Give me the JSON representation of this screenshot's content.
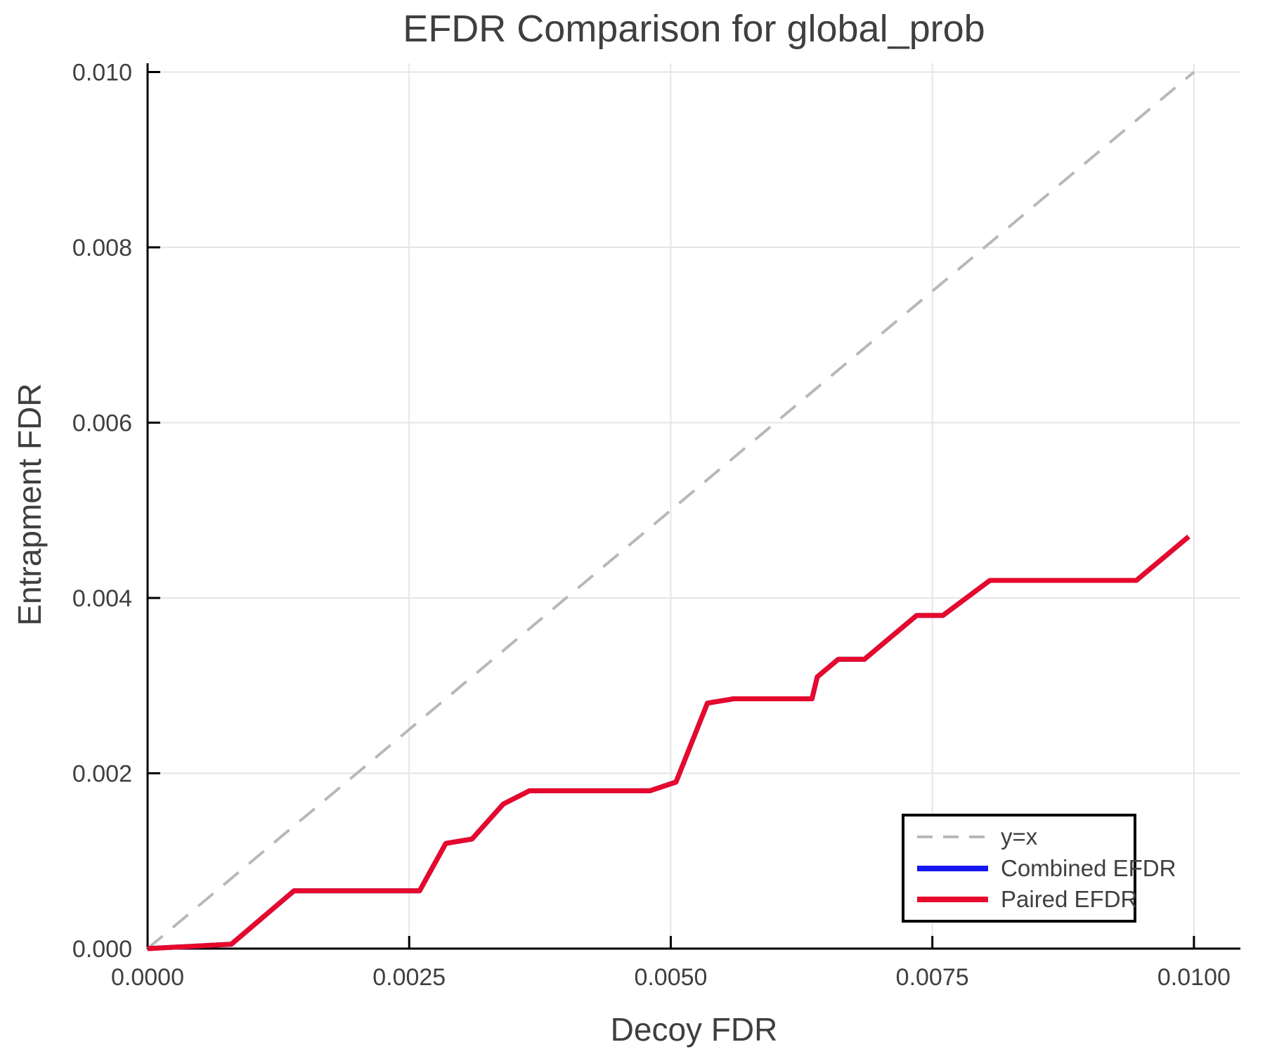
{
  "figure_title": "EFDR Comparison for global_prob",
  "colors": {
    "text": "#3f3f3f",
    "spine": "#000000",
    "grid": "#e6e6e6",
    "identity": "#b8b8b8",
    "combined": "#1616f0",
    "paired": "#e6092c",
    "legend_border": "#000000",
    "legend_bg": "#ffffff"
  },
  "chart_data": {
    "type": "line",
    "title": "EFDR Comparison for global_prob",
    "xlabel": "Decoy FDR",
    "ylabel": "Entrapment FDR",
    "xlim": [
      0,
      0.010444
    ],
    "ylim": [
      0,
      0.0101
    ],
    "grid": true,
    "legend_position": "lower right",
    "x_ticks": {
      "values": [
        0.0,
        0.0025,
        0.005,
        0.0075,
        0.01
      ],
      "labels": [
        "0.0000",
        "0.0025",
        "0.0050",
        "0.0075",
        "0.0100"
      ]
    },
    "y_ticks": {
      "values": [
        0.0,
        0.002,
        0.004,
        0.006,
        0.008,
        0.01
      ],
      "labels": [
        "0.000",
        "0.002",
        "0.004",
        "0.006",
        "0.008",
        "0.010"
      ]
    },
    "series": [
      {
        "key": "identity-line",
        "name": "y=x",
        "color": "#b8b8b8",
        "dashed": true,
        "x": [
          0,
          0.01
        ],
        "y": [
          0,
          0.01
        ]
      },
      {
        "key": "combined-efdr-line",
        "name": "Combined EFDR",
        "color": "#1616f0",
        "dashed": false,
        "x": [
          0.0,
          0.0008,
          0.0014,
          0.0026,
          0.00285,
          0.0031,
          0.0034,
          0.00365,
          0.0048,
          0.00505,
          0.00535,
          0.0056,
          0.00635,
          0.0064,
          0.0066,
          0.00685,
          0.00735,
          0.0076,
          0.00805,
          0.00945,
          0.00995
        ],
        "y": [
          0.0,
          5e-05,
          0.00066,
          0.00066,
          0.0012,
          0.00125,
          0.00165,
          0.0018,
          0.0018,
          0.0019,
          0.0028,
          0.00285,
          0.00285,
          0.0031,
          0.0033,
          0.0033,
          0.0038,
          0.0038,
          0.0042,
          0.0042,
          0.0047
        ]
      },
      {
        "key": "paired-efdr-line",
        "name": "Paired EFDR",
        "color": "#e6092c",
        "dashed": false,
        "x": [
          0.0,
          0.0008,
          0.0014,
          0.0026,
          0.00285,
          0.0031,
          0.0034,
          0.00365,
          0.0048,
          0.00505,
          0.00535,
          0.0056,
          0.00635,
          0.0064,
          0.0066,
          0.00685,
          0.00735,
          0.0076,
          0.00805,
          0.00945,
          0.00995
        ],
        "y": [
          0.0,
          5e-05,
          0.00066,
          0.00066,
          0.0012,
          0.00125,
          0.00165,
          0.0018,
          0.0018,
          0.0019,
          0.0028,
          0.00285,
          0.00285,
          0.0031,
          0.0033,
          0.0033,
          0.0038,
          0.0038,
          0.0042,
          0.0042,
          0.0047
        ]
      }
    ]
  },
  "legend": {
    "entries": [
      {
        "label": "y=x"
      },
      {
        "label": "Combined EFDR"
      },
      {
        "label": "Paired EFDR"
      }
    ]
  }
}
